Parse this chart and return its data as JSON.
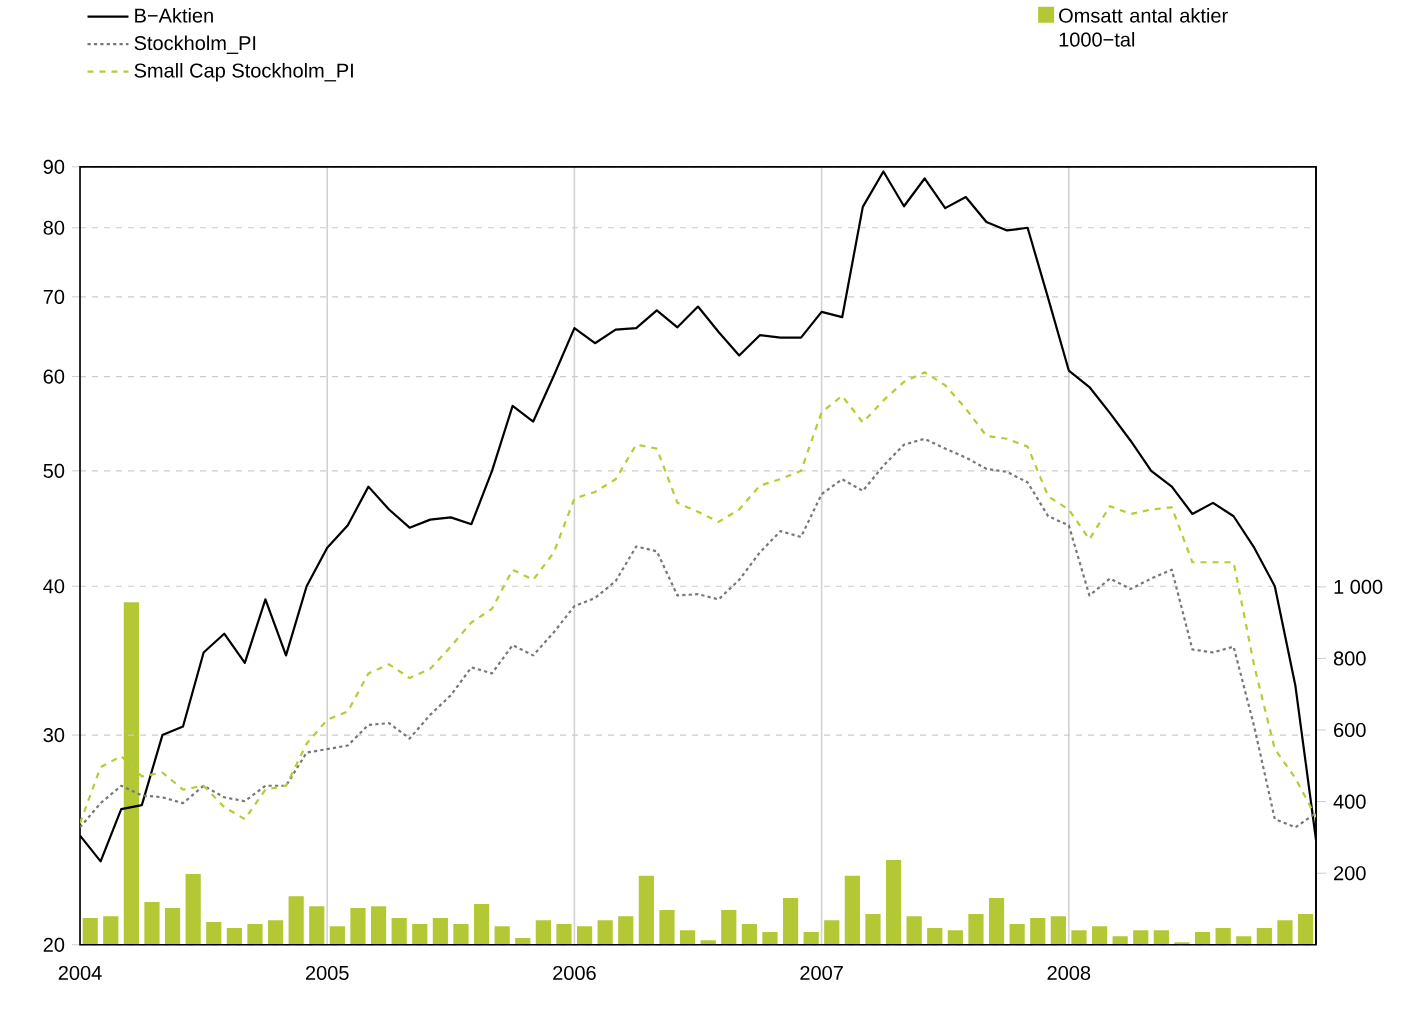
{
  "chart_data": {
    "type": "line",
    "log": "y",
    "grid": true,
    "legend": "top",
    "marker": "none",
    "xlim": [
      "2004-01",
      "2009-01"
    ],
    "xticks": [
      "2004",
      "2005",
      "2006",
      "2007",
      "2008"
    ],
    "ylim": [
      20,
      90
    ],
    "yticks": [
      20,
      30,
      40,
      50,
      60,
      70,
      80,
      90
    ],
    "y2lim": [
      0,
      2173
    ],
    "y2ticks": [
      200,
      400,
      600,
      800,
      {
        "value": 1000,
        "label": "1 000"
      }
    ],
    "x": [
      "2004-01",
      "2004-02",
      "2004-03",
      "2004-04",
      "2004-05",
      "2004-06",
      "2004-07",
      "2004-08",
      "2004-09",
      "2004-10",
      "2004-11",
      "2004-12",
      "2005-01",
      "2005-02",
      "2005-03",
      "2005-04",
      "2005-05",
      "2005-06",
      "2005-07",
      "2005-08",
      "2005-09",
      "2005-10",
      "2005-11",
      "2005-12",
      "2006-01",
      "2006-02",
      "2006-03",
      "2006-04",
      "2006-05",
      "2006-06",
      "2006-07",
      "2006-08",
      "2006-09",
      "2006-10",
      "2006-11",
      "2006-12",
      "2007-01",
      "2007-02",
      "2007-03",
      "2007-04",
      "2007-05",
      "2007-06",
      "2007-07",
      "2007-08",
      "2007-09",
      "2007-10",
      "2007-11",
      "2007-12",
      "2008-01",
      "2008-02",
      "2008-03",
      "2008-04",
      "2008-05",
      "2008-06",
      "2008-07",
      "2008-08",
      "2008-09",
      "2008-10",
      "2008-11",
      "2008-12",
      "2009-01"
    ],
    "series": [
      {
        "name": "Omsatt antal aktier 1000−tal",
        "type": "bar",
        "axis": "y2",
        "color": "#b3c834",
        "x": [
          "2004-01-16",
          "2004-02-16",
          "2004-03-16",
          "2004-04-16",
          "2004-05-16",
          "2004-06-16",
          "2004-07-16",
          "2004-08-16",
          "2004-09-16",
          "2004-10-16",
          "2004-11-16",
          "2004-12-16",
          "2005-01-16",
          "2005-02-16",
          "2005-03-16",
          "2005-04-16",
          "2005-05-16",
          "2005-06-16",
          "2005-07-16",
          "2005-08-16",
          "2005-09-16",
          "2005-10-16",
          "2005-11-16",
          "2005-12-16",
          "2006-01-16",
          "2006-02-16",
          "2006-03-16",
          "2006-04-16",
          "2006-05-16",
          "2006-06-16",
          "2006-07-16",
          "2006-08-16",
          "2006-09-16",
          "2006-10-16",
          "2006-11-16",
          "2006-12-16",
          "2007-01-16",
          "2007-02-16",
          "2007-03-16",
          "2007-04-16",
          "2007-05-16",
          "2007-06-16",
          "2007-07-16",
          "2007-08-16",
          "2007-09-16",
          "2007-10-16",
          "2007-11-16",
          "2007-12-16",
          "2008-01-16",
          "2008-02-16",
          "2008-03-16",
          "2008-04-16",
          "2008-05-16",
          "2008-06-16",
          "2008-07-16",
          "2008-08-16",
          "2008-09-16",
          "2008-10-16",
          "2008-11-16",
          "2008-12-16"
        ],
        "values": [
          75,
          80,
          957,
          120,
          103,
          198,
          64,
          47,
          58,
          69,
          136,
          108,
          52,
          103,
          108,
          75,
          58,
          75,
          58,
          114,
          52,
          19,
          69,
          58,
          52,
          69,
          80,
          193,
          97,
          41,
          13,
          97,
          58,
          36,
          131,
          36,
          69,
          193,
          86,
          237,
          80,
          47,
          41,
          86,
          131,
          58,
          75,
          80,
          41,
          52,
          24,
          41,
          41,
          7,
          36,
          47,
          24,
          47,
          69,
          86
        ]
      },
      {
        "name": "B−Aktien",
        "color": "#000000",
        "line_style": "solid",
        "values": [
          24.7,
          23.5,
          26.0,
          26.2,
          30.0,
          30.5,
          35.2,
          36.5,
          34.5,
          39.0,
          35.0,
          40.0,
          43.1,
          45.0,
          48.5,
          46.4,
          44.8,
          45.5,
          45.7,
          45.1,
          50.0,
          56.7,
          55.0,
          60.1,
          65.9,
          64.0,
          65.7,
          65.9,
          68.2,
          66.0,
          68.7,
          65.4,
          62.5,
          65.0,
          64.7,
          64.7,
          68.0,
          67.3,
          83.3,
          89.2,
          83.4,
          88.0,
          83.1,
          84.9,
          80.9,
          79.6,
          80.0,
          69.8,
          60.7,
          58.8,
          55.9,
          53.0,
          50.0,
          48.5,
          46.0,
          47.0,
          45.8,
          43.1,
          40.0,
          33.0,
          24.5
        ]
      },
      {
        "name": "Stockholm_PI",
        "color": "#777777",
        "line_style": "dotted",
        "values": [
          25.1,
          26.3,
          27.2,
          26.7,
          26.6,
          26.3,
          27.2,
          26.6,
          26.4,
          27.2,
          27.2,
          29.0,
          29.2,
          29.4,
          30.6,
          30.7,
          29.8,
          31.2,
          32.4,
          34.2,
          33.8,
          35.7,
          35.0,
          36.6,
          38.5,
          39.1,
          40.4,
          43.2,
          42.8,
          39.3,
          39.4,
          39.0,
          40.5,
          42.7,
          44.5,
          44.0,
          47.8,
          49.2,
          48.1,
          50.5,
          52.6,
          53.2,
          52.2,
          51.3,
          50.2,
          49.9,
          48.9,
          45.8,
          45.0,
          39.3,
          40.6,
          39.8,
          40.6,
          41.3,
          35.4,
          35.2,
          35.6,
          30.5,
          25.5,
          25.1,
          25.8
        ]
      },
      {
        "name": "Small Cap Stockholm_PI",
        "color": "#b5cc34",
        "line_style": "dashed",
        "values": [
          25.3,
          28.2,
          28.8,
          27.7,
          27.9,
          27.0,
          27.2,
          26.1,
          25.5,
          27.0,
          27.2,
          29.5,
          30.9,
          31.4,
          33.8,
          34.4,
          33.5,
          34.1,
          35.6,
          37.3,
          38.3,
          41.3,
          40.5,
          42.7,
          47.4,
          48.0,
          49.2,
          52.6,
          52.2,
          47.0,
          46.2,
          45.3,
          46.4,
          48.6,
          49.2,
          50.0,
          56.0,
          57.8,
          54.9,
          57.3,
          59.4,
          60.5,
          59.0,
          56.4,
          53.5,
          53.2,
          52.4,
          47.6,
          46.4,
          43.8,
          46.7,
          46.0,
          46.4,
          46.6,
          41.9,
          41.9,
          41.9,
          34.3,
          29.2,
          27.6,
          25.6
        ]
      }
    ]
  }
}
